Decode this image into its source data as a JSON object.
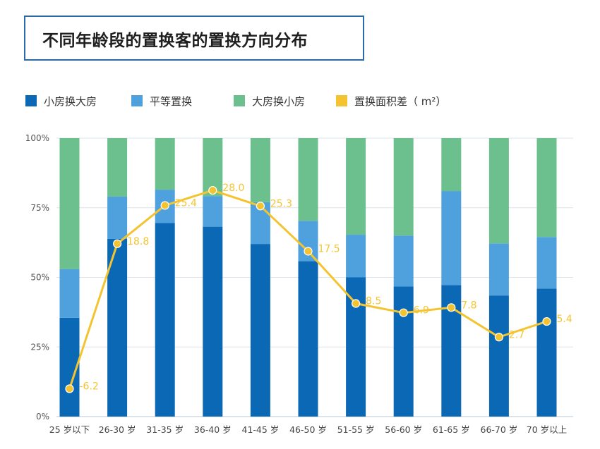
{
  "title": "不同年龄段的置换客的置换方向分布",
  "legend": [
    {
      "label": "小房换大房",
      "color": "#0b68b5"
    },
    {
      "label": "平等置换",
      "color": "#4fa1de"
    },
    {
      "label": "大房换小房",
      "color": "#6cc08e"
    },
    {
      "label": "置换面积差（ m²）",
      "color": "#f4c430"
    }
  ],
  "chart_data": {
    "type": "bar",
    "stacked": true,
    "normalized_percent": true,
    "categories": [
      "25 岁以下",
      "26-30 岁",
      "31-35 岁",
      "36-40 岁",
      "41-45 岁",
      "46-50 岁",
      "51-55 岁",
      "56-60 岁",
      "61-65 岁",
      "66-70 岁",
      "70 岁以上"
    ],
    "series": [
      {
        "name": "小房换大房",
        "values": [
          35.5,
          63.8,
          69.5,
          68.2,
          62.0,
          55.8,
          50.0,
          46.7,
          47.2,
          43.5,
          46.0
        ]
      },
      {
        "name": "平等置换",
        "values": [
          17.5,
          15.2,
          12.0,
          11.0,
          15.0,
          14.5,
          15.3,
          18.3,
          33.8,
          18.7,
          18.5
        ]
      },
      {
        "name": "大房换小房",
        "values": [
          47.0,
          21.0,
          18.5,
          20.8,
          23.0,
          29.7,
          34.7,
          35.0,
          19.0,
          37.8,
          35.5
        ]
      }
    ],
    "line": {
      "name": "置换面积差（ m²）",
      "values": [
        -6.2,
        18.8,
        25.4,
        28.0,
        25.3,
        17.5,
        8.5,
        6.9,
        7.8,
        2.7,
        5.4
      ],
      "labels": [
        "-6.2",
        "18.8",
        "25.4",
        "28.0",
        "25.3",
        "17.5",
        "8.5",
        "6.9",
        "7.8",
        "2.7",
        "5.4"
      ],
      "scale_min": -11.0,
      "scale_max": 37.0
    },
    "y_ticks": [
      "0%",
      "25%",
      "50%",
      "75%",
      "100%"
    ],
    "ylim": [
      0,
      100
    ],
    "grid": true
  }
}
